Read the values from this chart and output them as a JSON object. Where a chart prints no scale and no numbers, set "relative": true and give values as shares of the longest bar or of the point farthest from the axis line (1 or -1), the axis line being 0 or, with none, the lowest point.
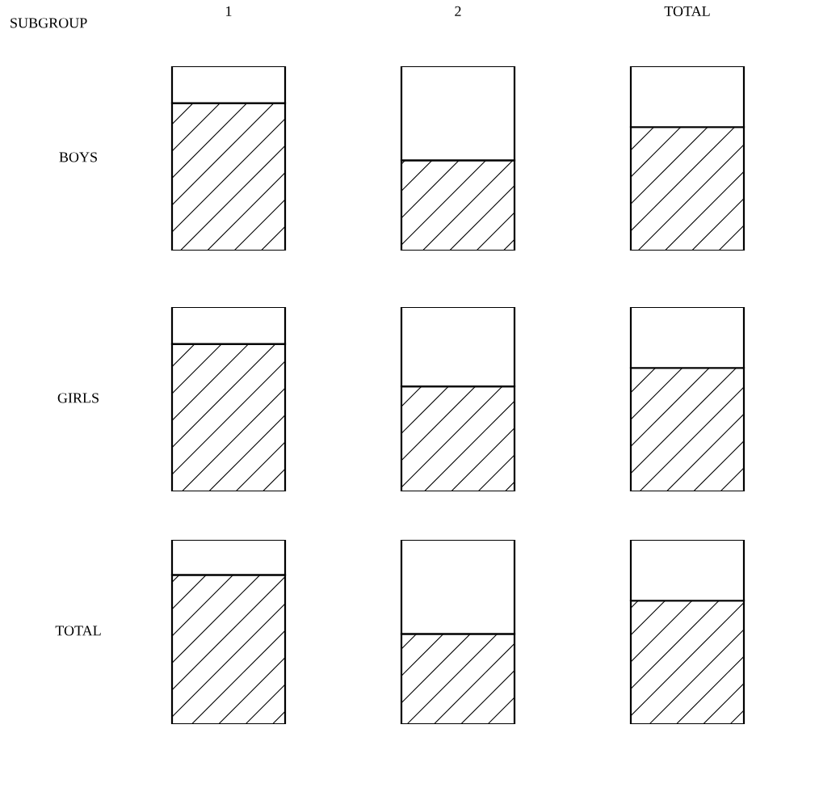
{
  "chart_data": [
    {
      "type": "bar",
      "stacked": true,
      "relative": true,
      "ylabel": "BOYS",
      "annotations": [
        "SUBGROUP"
      ],
      "categories": [
        "1",
        "2",
        "TOTAL"
      ],
      "series": [
        {
          "color": "#000000",
          "values": [
            0.8,
            0.49,
            0.67
          ]
        },
        {
          "color": "#ffffff",
          "values": [
            0.2,
            0.51,
            0.33
          ]
        }
      ]
    },
    {
      "type": "bar",
      "stacked": true,
      "relative": true,
      "ylabel": "GIRLS",
      "categories": [
        null,
        null,
        null
      ],
      "series": [
        {
          "color": "#000000",
          "values": [
            0.8,
            0.57,
            0.67
          ]
        },
        {
          "color": "#ffffff",
          "values": [
            0.2,
            0.43,
            0.33
          ]
        }
      ]
    },
    {
      "type": "bar",
      "stacked": true,
      "relative": true,
      "ylabel": "TOTAL",
      "categories": [
        null,
        null,
        null
      ],
      "series": [
        {
          "color": "#000000",
          "values": [
            0.81,
            0.49,
            0.67
          ]
        },
        {
          "color": "#ffffff",
          "values": [
            0.19,
            0.51,
            0.33
          ]
        }
      ]
    }
  ]
}
